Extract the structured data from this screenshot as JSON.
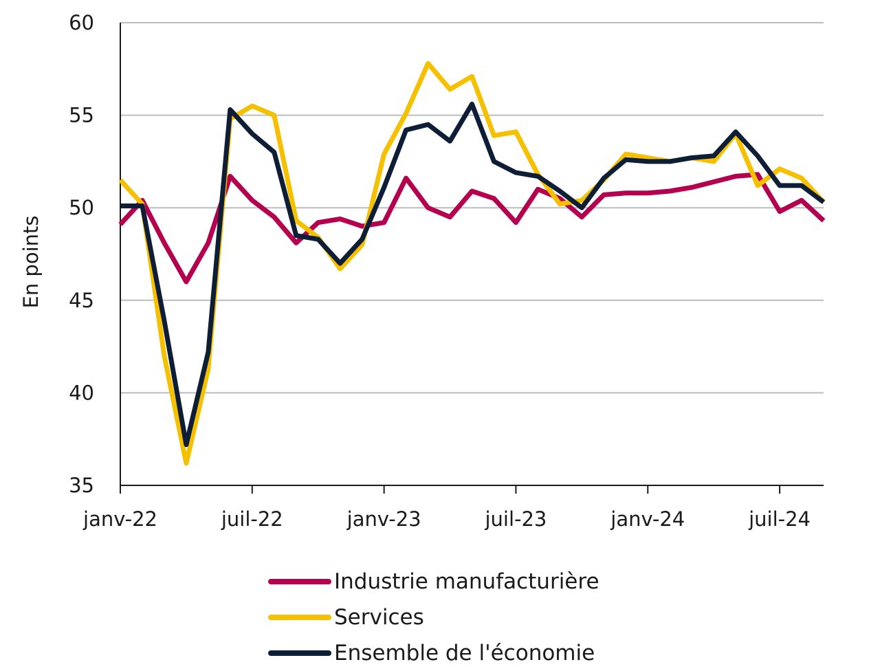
{
  "chart_data": {
    "type": "line",
    "title": "",
    "xlabel": "",
    "ylabel": "En points",
    "ylim": [
      35,
      60
    ],
    "yticks": [
      35,
      40,
      45,
      50,
      55,
      60
    ],
    "grid": true,
    "legend_position": "bottom",
    "x": [
      "2022-01",
      "2022-02",
      "2022-03",
      "2022-04",
      "2022-05",
      "2022-06",
      "2022-07",
      "2022-08",
      "2022-09",
      "2022-10",
      "2022-11",
      "2022-12",
      "2023-01",
      "2023-02",
      "2023-03",
      "2023-04",
      "2023-05",
      "2023-06",
      "2023-07",
      "2023-08",
      "2023-09",
      "2023-10",
      "2023-11",
      "2023-12",
      "2024-01",
      "2024-02",
      "2024-03",
      "2024-04",
      "2024-05",
      "2024-06",
      "2024-07",
      "2024-08",
      "2024-09"
    ],
    "x_tick_labels": [
      {
        "at": "2022-01",
        "label": "janv-22"
      },
      {
        "at": "2022-07",
        "label": "juil-22"
      },
      {
        "at": "2023-01",
        "label": "janv-23"
      },
      {
        "at": "2023-07",
        "label": "juil-23"
      },
      {
        "at": "2024-01",
        "label": "janv-24"
      },
      {
        "at": "2024-07",
        "label": "juil-24"
      }
    ],
    "series": [
      {
        "name": "Industrie manufacturière",
        "color": "#b5004f",
        "values": [
          49.1,
          50.4,
          48.1,
          46.0,
          48.1,
          51.7,
          50.4,
          49.5,
          48.1,
          49.2,
          49.4,
          49.0,
          49.2,
          51.6,
          50.0,
          49.5,
          50.9,
          50.5,
          49.2,
          51.0,
          50.5,
          49.5,
          50.7,
          50.8,
          50.8,
          50.9,
          51.1,
          51.4,
          51.7,
          51.8,
          49.8,
          50.4,
          49.3
        ]
      },
      {
        "name": "Services",
        "color": "#f5c000",
        "values": [
          51.5,
          50.2,
          42.0,
          36.2,
          41.3,
          54.8,
          55.5,
          55.0,
          49.3,
          48.4,
          46.7,
          48.0,
          52.9,
          55.1,
          57.8,
          56.4,
          57.1,
          53.9,
          54.1,
          51.8,
          50.2,
          50.4,
          51.5,
          52.9,
          52.7,
          52.5,
          52.7,
          52.5,
          54.0,
          51.2,
          52.1,
          51.6,
          50.3
        ]
      },
      {
        "name": "Ensemble de l'économie",
        "color": "#0e1e36",
        "values": [
          50.1,
          50.1,
          43.9,
          37.2,
          42.2,
          55.3,
          54.0,
          53.0,
          48.5,
          48.3,
          47.0,
          48.3,
          51.1,
          54.2,
          54.5,
          53.6,
          55.6,
          52.5,
          51.9,
          51.7,
          50.9,
          50.0,
          51.6,
          52.6,
          52.5,
          52.5,
          52.7,
          52.8,
          54.1,
          52.8,
          51.2,
          51.2,
          50.3
        ]
      }
    ]
  }
}
